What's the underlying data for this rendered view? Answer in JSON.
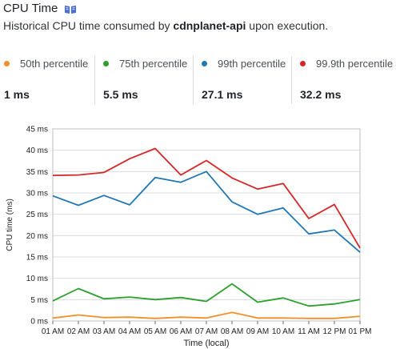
{
  "header": {
    "title": "CPU Time",
    "subtitle_prefix": "Historical CPU time consumed by ",
    "subtitle_bold": "cdnplanet-api",
    "subtitle_suffix": " upon execution."
  },
  "stats": [
    {
      "label": "50th percentile",
      "value": "1 ms",
      "color": "#f28e2b"
    },
    {
      "label": "75th percentile",
      "value": "5.5 ms",
      "color": "#2ca02c"
    },
    {
      "label": "99th percentile",
      "value": "27.1 ms",
      "color": "#1f77b4"
    },
    {
      "label": "99.9th percentile",
      "value": "32.2 ms",
      "color": "#d62728"
    }
  ],
  "chart_data": {
    "type": "line",
    "xlabel": "Time (local)",
    "ylabel": "CPU time (ms)",
    "ylim": [
      0,
      45
    ],
    "yticks": [
      "0 ms",
      "5 ms",
      "10 ms",
      "15 ms",
      "20 ms",
      "25 ms",
      "30 ms",
      "35 ms",
      "40 ms",
      "45 ms"
    ],
    "categories": [
      "01 AM",
      "02 AM",
      "03 AM",
      "04 AM",
      "05 AM",
      "06 AM",
      "07 AM",
      "08 AM",
      "09 AM",
      "10 AM",
      "11 AM",
      "12 PM",
      "01 PM"
    ],
    "series": [
      {
        "key": "p50",
        "color": "#f28e2b",
        "values": [
          0.7,
          1.4,
          0.8,
          0.9,
          0.6,
          0.9,
          0.7,
          2.0,
          0.7,
          0.7,
          0.6,
          0.6,
          1.1
        ]
      },
      {
        "key": "p75",
        "color": "#2ca02c",
        "values": [
          4.7,
          7.6,
          5.2,
          5.6,
          5.0,
          5.5,
          4.6,
          8.7,
          4.4,
          5.4,
          3.5,
          4.0,
          5.0
        ]
      },
      {
        "key": "p99",
        "color": "#1f77b4",
        "values": [
          29.3,
          27.1,
          29.4,
          27.2,
          33.6,
          32.5,
          35.0,
          27.9,
          25.0,
          26.5,
          20.4,
          21.3,
          16.1
        ]
      },
      {
        "key": "p999",
        "color": "#d62728",
        "values": [
          34.1,
          34.2,
          34.8,
          38.0,
          40.4,
          34.2,
          37.6,
          33.5,
          30.9,
          32.2,
          24.0,
          27.3,
          17.1
        ]
      }
    ],
    "grid": true
  }
}
